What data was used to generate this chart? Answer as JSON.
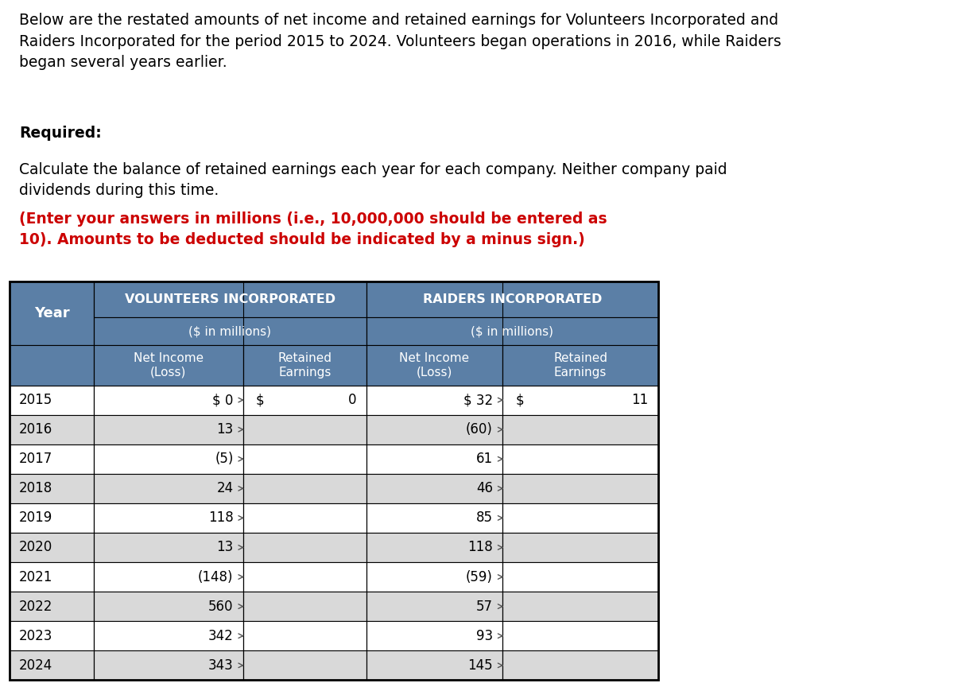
{
  "description_text": "Below are the restated amounts of net income and retained earnings for Volunteers Incorporated and\nRaiders Incorporated for the period 2015 to 2024. Volunteers began operations in 2016, while Raiders\nbegan several years earlier.",
  "required_text": "Required:",
  "required_body": "Calculate the balance of retained earnings each year for each company. Neither company paid\ndividends during this time. ",
  "required_bold": "(Enter your answers in millions (i.e., 10,000,000 should be entered as\n10). Amounts to be deducted should be indicated by a minus sign.)",
  "years": [
    "2015",
    "2016",
    "2017",
    "2018",
    "2019",
    "2020",
    "2021",
    "2022",
    "2023",
    "2024"
  ],
  "vol_net_income": [
    "$ 0",
    "13",
    "(5)",
    "24",
    "118",
    "13",
    "(148)",
    "560",
    "342",
    "343"
  ],
  "vol_retained": [
    "$ 0",
    "",
    "",
    "",
    "",
    "",
    "",
    "",
    "",
    ""
  ],
  "vol_retained_show_dollar": true,
  "raid_net_income": [
    "$ 32",
    "(60)",
    "61",
    "46",
    "85",
    "118",
    "(59)",
    "57",
    "93",
    "145"
  ],
  "raid_retained": [
    "$ 11",
    "",
    "",
    "",
    "",
    "",
    "",
    "",
    "",
    ""
  ],
  "header_bg": "#5b7fa6",
  "subheader_bg": "#5b7fa6",
  "row_bg_odd": "#ffffff",
  "row_bg_even": "#e8e8e8",
  "header_text_color": "#ffffff",
  "body_text_color": "#000000",
  "table_border_color": "#000000",
  "fig_bg": "#ffffff",
  "font_size_desc": 13.5,
  "font_size_table": 12
}
